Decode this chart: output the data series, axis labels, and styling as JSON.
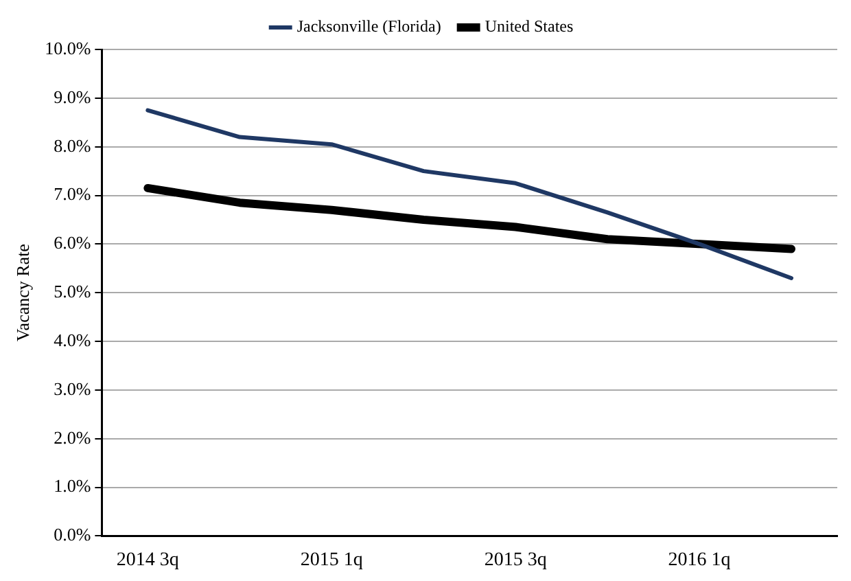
{
  "chart_data": {
    "type": "line",
    "ylabel": "Vacancy Rate",
    "categories": [
      "2014 3q",
      null,
      "2015 1q",
      null,
      "2015 3q",
      null,
      "2016 1q",
      null
    ],
    "series": [
      {
        "name": "Jacksonville (Florida)",
        "color": "#1f3864",
        "values": [
          8.75,
          8.2,
          8.05,
          7.5,
          7.25,
          6.65,
          6.0,
          5.3
        ]
      },
      {
        "name": "United States",
        "color": "#000000",
        "values": [
          7.15,
          6.85,
          6.7,
          6.5,
          6.35,
          6.1,
          6.0,
          5.9
        ]
      }
    ],
    "ylim": [
      0,
      10
    ],
    "yticks": [
      {
        "value": 0,
        "label": "0.0%"
      },
      {
        "value": 1,
        "label": "1.0%"
      },
      {
        "value": 2,
        "label": "2.0%"
      },
      {
        "value": 3,
        "label": "3.0%"
      },
      {
        "value": 4,
        "label": "4.0%"
      },
      {
        "value": 5,
        "label": "5.0%"
      },
      {
        "value": 6,
        "label": "6.0%"
      },
      {
        "value": 7,
        "label": "7.0%"
      },
      {
        "value": 8,
        "label": "8.0%"
      },
      {
        "value": 9,
        "label": "9.0%"
      },
      {
        "value": 10,
        "label": "10.0%"
      }
    ],
    "grid": "y",
    "legend": "top",
    "marker": "none",
    "line_style": "solid"
  }
}
